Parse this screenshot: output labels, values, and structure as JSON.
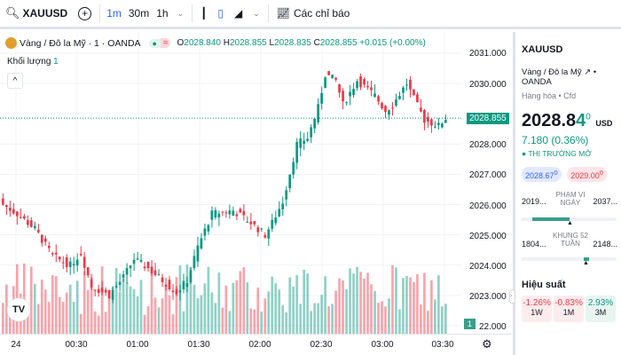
{
  "toolbar": {
    "symbol": "XAUUSD",
    "intervals": [
      "1m",
      "30m",
      "1h"
    ],
    "indicators_label": "Các chỉ báo"
  },
  "legend": {
    "title": "Vàng / Đô la Mỹ · 1 · OANDA",
    "o_label": "O",
    "o": "2028.840",
    "h_label": "H",
    "h": "2028.855",
    "l_label": "L",
    "l": "2028.835",
    "c_label": "C",
    "c": "2028.855",
    "change": "+0.015 (+0.00%)",
    "volume_label": "Khối lượng",
    "volume": "1"
  },
  "axis": {
    "prices": [
      "2031.000",
      "2030.000",
      "2028.000",
      "2027.000",
      "2026.000",
      "2025.000",
      "2024.000",
      "2023.000",
      "22.000"
    ],
    "current_price": "2028.855",
    "volume_badge": "1",
    "times": [
      "24",
      "00:30",
      "01:00",
      "01:30",
      "02:00",
      "02:30",
      "03:00",
      "03:30"
    ]
  },
  "chart_data": {
    "type": "candlestick",
    "price_range": [
      2022,
      2031
    ],
    "current": 2028.855,
    "path": [
      [
        0,
        2026.0
      ],
      [
        4,
        2025.7
      ],
      [
        9,
        2025.2
      ],
      [
        14,
        2024.3
      ],
      [
        19,
        2024.0
      ],
      [
        22,
        2024.4
      ],
      [
        25,
        2023.3
      ],
      [
        30,
        2023.0
      ],
      [
        34,
        2023.6
      ],
      [
        37,
        2024.2
      ],
      [
        41,
        2023.9
      ],
      [
        45,
        2023.5
      ],
      [
        49,
        2023.1
      ],
      [
        52,
        2023.5
      ],
      [
        55,
        2024.6
      ],
      [
        59,
        2025.7
      ],
      [
        65,
        2025.8
      ],
      [
        70,
        2025.4
      ],
      [
        74,
        2025.0
      ],
      [
        76,
        2025.4
      ],
      [
        79,
        2026.1
      ],
      [
        83,
        2028.0
      ],
      [
        86,
        2028.2
      ],
      [
        89,
        2029.2
      ],
      [
        91,
        2030.3
      ],
      [
        94,
        2030.1
      ],
      [
        96,
        2029.3
      ],
      [
        100,
        2030.1
      ],
      [
        105,
        2029.6
      ],
      [
        108,
        2029.1
      ],
      [
        110,
        2029.3
      ],
      [
        114,
        2030.0
      ],
      [
        116,
        2029.5
      ],
      [
        119,
        2028.8
      ],
      [
        123,
        2028.6
      ],
      [
        125,
        2028.855
      ]
    ],
    "up_color": "#089981",
    "down_color": "#f23645"
  },
  "panel": {
    "symbol": "XAUUSD",
    "name": "Vàng / Đô la Mỹ",
    "exchange": "OANDA",
    "category": "Hàng hóa • Cfd",
    "price_main": "2028.8",
    "price_last": "4",
    "price_sup": "0",
    "currency": "USD",
    "change": "7.180 (0.36%)",
    "market_status": "THỊ TRƯỜNG MỞ",
    "bid": "2028.67",
    "bid_sup": "0",
    "ask": "2029.00",
    "ask_sup": "0",
    "day_range": {
      "label1": "PHẠM VI",
      "label2": "NGÀY",
      "low": "2019...",
      "high": "2037...",
      "position": 0.5
    },
    "week52": {
      "label1": "KHUNG 52",
      "label2": "TUẦN",
      "low": "1804...",
      "high": "2148...",
      "position": 0.66
    },
    "performance_title": "Hiệu suất",
    "performance": [
      {
        "value": "-1.26%",
        "period": "1W"
      },
      {
        "value": "-0.83%",
        "period": "1M"
      },
      {
        "value": "2.93%",
        "period": "3M"
      }
    ]
  }
}
